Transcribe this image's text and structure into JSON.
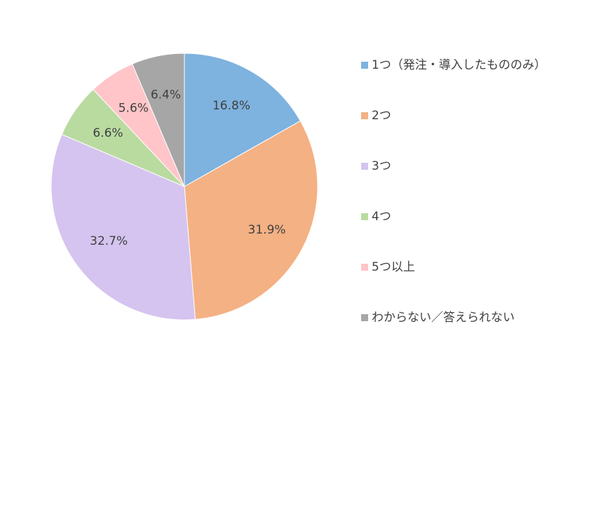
{
  "chart_data": {
    "type": "pie",
    "categories": [
      "1つ（発注・導入したもののみ）",
      "2つ",
      "3つ",
      "4つ",
      "5つ以上",
      "わからない／答えられない"
    ],
    "values": [
      16.8,
      31.9,
      32.7,
      6.6,
      5.6,
      6.4
    ],
    "value_labels": [
      "16.8%",
      "31.9%",
      "32.7%",
      "6.6%",
      "5.6%",
      "6.4%"
    ],
    "colors": [
      "#7eb2df",
      "#f4b183",
      "#d4c4ef",
      "#b9dba0",
      "#ffc5c8",
      "#a6a6a6"
    ],
    "legend": "right"
  }
}
